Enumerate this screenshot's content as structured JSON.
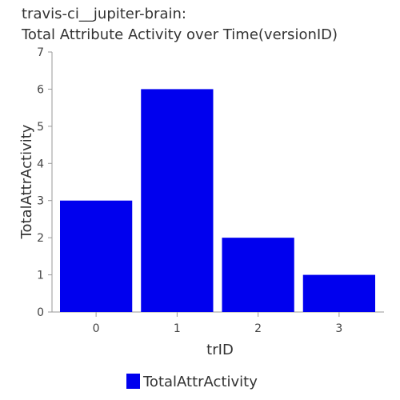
{
  "title_line1": "travis-ci__jupiter-brain:",
  "title_line2": "Total Attribute Activity over Time(versionID)",
  "chart_data": {
    "type": "bar",
    "categories": [
      "0",
      "1",
      "2",
      "3"
    ],
    "series": [
      {
        "name": "TotalAttrActivity",
        "values": [
          3,
          6,
          2,
          1
        ],
        "color": "#0000ee"
      }
    ],
    "xlabel": "trID",
    "ylabel": "TotalAttrActivity",
    "ylim": [
      0,
      7
    ],
    "yticks": [
      "0",
      "1",
      "2",
      "3",
      "4",
      "5",
      "6",
      "7"
    ],
    "grid": false,
    "legend_position": "bottom"
  }
}
